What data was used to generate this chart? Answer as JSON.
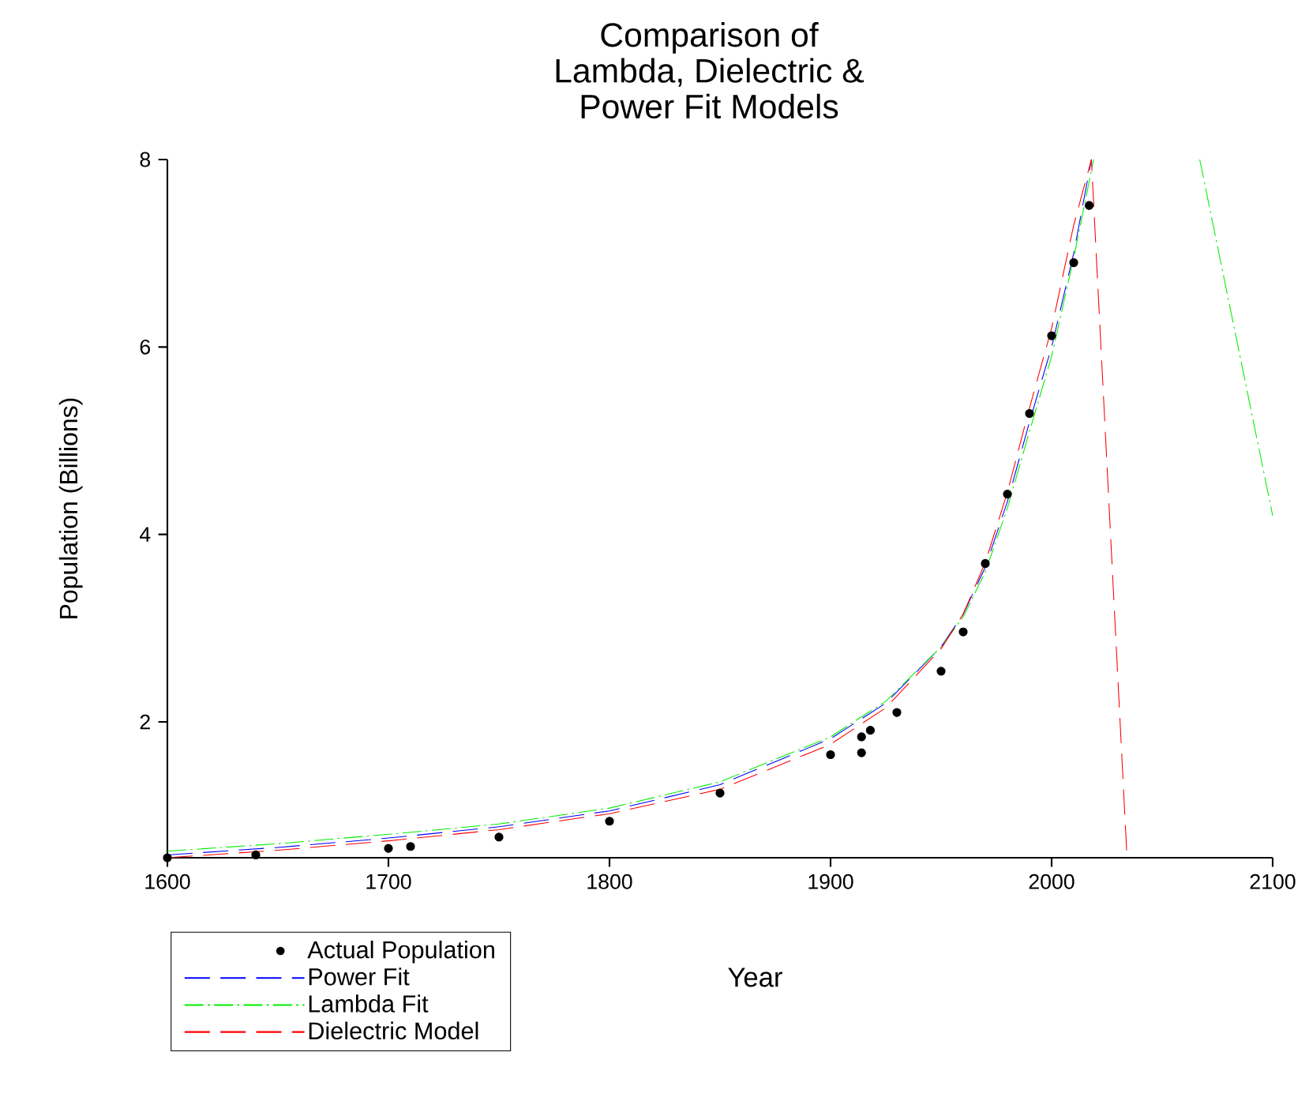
{
  "chart_data": {
    "type": "line",
    "title": "Comparison of\nLambda, Dielectric &\nPower Fit Models",
    "xlabel": "Year",
    "ylabel": "Population (Billions)",
    "xlim": [
      1600,
      2100
    ],
    "ylim": [
      0.55,
      8
    ],
    "xticks": [
      1600,
      1700,
      1800,
      1900,
      2000,
      2100
    ],
    "yticks": [
      2,
      4,
      6,
      8
    ],
    "grid": false,
    "legend": "bottom left",
    "series": [
      {
        "name": "Actual Population",
        "type": "scatter",
        "marker": "circle",
        "color": "#000000",
        "x": [
          1600,
          1640,
          1700,
          1710,
          1750,
          1800,
          1850,
          1900,
          1914,
          1914,
          1918,
          1930,
          1950,
          1960,
          1970,
          1980,
          1990,
          2000,
          2010,
          2017
        ],
        "values": [
          0.55,
          0.58,
          0.65,
          0.67,
          0.77,
          0.94,
          1.24,
          1.65,
          1.67,
          1.84,
          1.91,
          2.1,
          2.54,
          2.96,
          3.69,
          4.43,
          5.29,
          6.12,
          6.9,
          7.51
        ]
      },
      {
        "name": "Power Fit",
        "type": "line",
        "marker": "none",
        "line_style": "dashed",
        "color": "#0000ff",
        "x": [
          1600,
          1650,
          1700,
          1750,
          1800,
          1850,
          1900,
          1925,
          1950,
          1960,
          1970,
          1980,
          1990,
          2000,
          2010,
          2018
        ],
        "values": [
          0.58,
          0.66,
          0.76,
          0.88,
          1.05,
          1.33,
          1.82,
          2.2,
          2.8,
          3.15,
          3.65,
          4.35,
          5.2,
          6.0,
          7.0,
          8.0
        ]
      },
      {
        "name": "Lambda Fit",
        "type": "line",
        "marker": "none",
        "line_style": "dashdot",
        "color": "#00ee00",
        "x": [
          1600,
          1650,
          1700,
          1750,
          1800,
          1850,
          1900,
          1925,
          1950,
          1960,
          1970,
          1980,
          1990,
          2000,
          2010,
          2019,
          2040,
          2067,
          2100
        ],
        "values": [
          0.62,
          0.7,
          0.8,
          0.91,
          1.08,
          1.36,
          1.84,
          2.22,
          2.8,
          3.12,
          3.6,
          4.28,
          5.1,
          5.9,
          6.95,
          8.0,
          null,
          8.0,
          4.2
        ]
      },
      {
        "name": "Dielectric Model",
        "type": "line",
        "marker": "none",
        "line_style": "dashed",
        "color": "#ff0000",
        "x": [
          1600,
          1650,
          1700,
          1750,
          1800,
          1850,
          1900,
          1925,
          1950,
          1960,
          1970,
          1980,
          1990,
          2000,
          2010,
          2018,
          2034
        ],
        "values": [
          0.55,
          0.63,
          0.73,
          0.85,
          1.02,
          1.28,
          1.76,
          2.15,
          2.78,
          3.15,
          3.7,
          4.45,
          5.35,
          6.2,
          7.3,
          8.0,
          0.6
        ]
      }
    ]
  }
}
